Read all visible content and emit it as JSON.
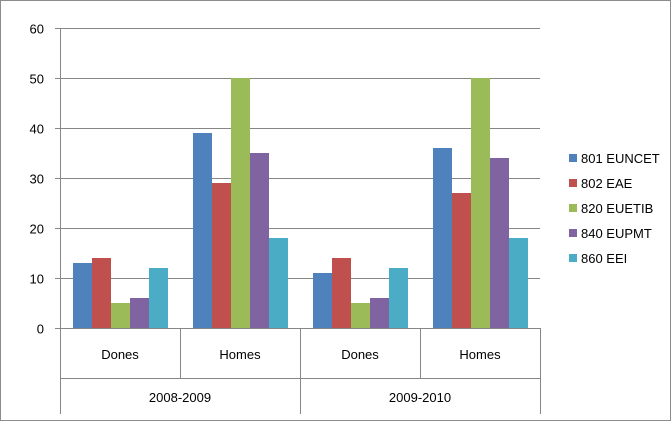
{
  "chart_data": {
    "type": "bar",
    "title": "",
    "xlabel": "",
    "ylabel": "",
    "ylim": [
      0,
      60
    ],
    "yticks": [
      0,
      10,
      20,
      30,
      40,
      50,
      60
    ],
    "grid": true,
    "legend_position": "right",
    "categories": [
      "Dones",
      "Homes",
      "Dones",
      "Homes"
    ],
    "groups": [
      {
        "label": "2008-2009",
        "categories": [
          "Dones",
          "Homes"
        ]
      },
      {
        "label": "2009-2010",
        "categories": [
          "Dones",
          "Homes"
        ]
      }
    ],
    "series": [
      {
        "name": "801 EUNCET",
        "color": "#4f81bd",
        "values": [
          13,
          39,
          11,
          36
        ]
      },
      {
        "name": "802 EAE",
        "color": "#c0504d",
        "values": [
          14,
          29,
          14,
          27
        ]
      },
      {
        "name": "820 EUETIB",
        "color": "#9bbb59",
        "values": [
          5,
          50,
          5,
          50
        ]
      },
      {
        "name": "840 EUPMT",
        "color": "#8064a2",
        "values": [
          6,
          35,
          6,
          34
        ]
      },
      {
        "name": "860 EEI",
        "color": "#4bacc6",
        "values": [
          12,
          18,
          12,
          18
        ]
      }
    ]
  }
}
